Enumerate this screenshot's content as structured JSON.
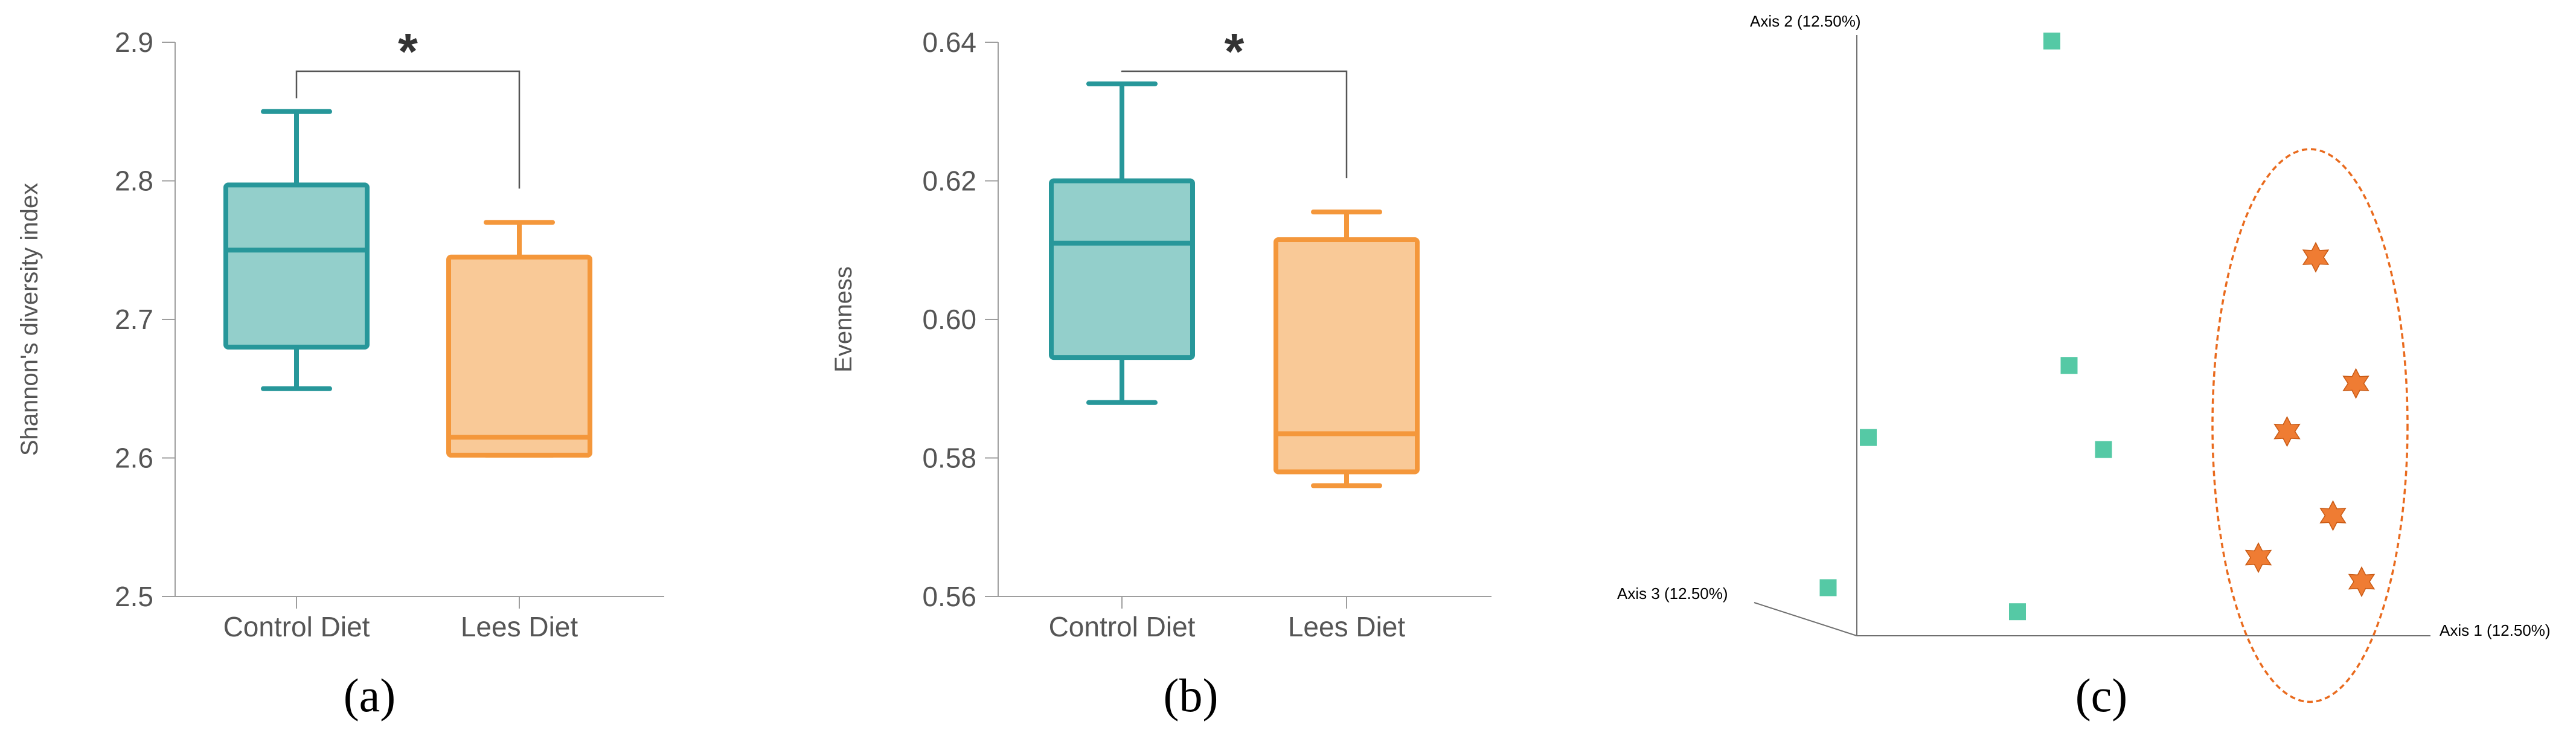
{
  "colors": {
    "control_stroke": "#27979a",
    "control_fill": "#93cfcb",
    "lees_stroke": "#f4973b",
    "lees_fill": "#f9c997",
    "square_points": "#55c9a5",
    "star_points": "#ef7c33",
    "ellipse": "#e96a1d"
  },
  "panels": [
    "(a)",
    "(b)",
    "(c)"
  ],
  "chart_data": [
    {
      "type": "box",
      "panel": "(a)",
      "title": "",
      "ylabel": "Shannon's diversity index",
      "xlabel": "",
      "ylim": [
        2.5,
        2.9
      ],
      "yticks": [
        "2.5",
        "2.6",
        "2.7",
        "2.8",
        "2.9"
      ],
      "yticks_values": [
        2.5,
        2.6,
        2.7,
        2.8,
        2.9
      ],
      "categories": [
        "Control Diet",
        "Lees Diet"
      ],
      "boxes": [
        {
          "category": "Control Diet",
          "min": 2.65,
          "q1": 2.68,
          "median": 2.75,
          "q3": 2.797,
          "max": 2.85,
          "color": "control"
        },
        {
          "category": "Lees Diet",
          "min": 2.602,
          "q1": 2.602,
          "median": 2.615,
          "q3": 2.745,
          "max": 2.77,
          "color": "lees"
        }
      ],
      "significance": "*"
    },
    {
      "type": "box",
      "panel": "(b)",
      "title": "",
      "ylabel": "Evenness",
      "xlabel": "",
      "ylim": [
        0.56,
        0.64
      ],
      "yticks": [
        "0.56",
        "0.58",
        "0.60",
        "0.62",
        "0.64"
      ],
      "yticks_values": [
        0.56,
        0.58,
        0.6,
        0.62,
        0.64
      ],
      "categories": [
        "Control Diet",
        "Lees Diet"
      ],
      "boxes": [
        {
          "category": "Control Diet",
          "min": 0.588,
          "q1": 0.5945,
          "median": 0.611,
          "q3": 0.62,
          "max": 0.634,
          "color": "control"
        },
        {
          "category": "Lees Diet",
          "min": 0.576,
          "q1": 0.578,
          "median": 0.5835,
          "q3": 0.6115,
          "max": 0.6155,
          "color": "lees"
        }
      ],
      "significance": "*"
    },
    {
      "type": "scatter",
      "panel": "(c)",
      "title": "",
      "axes": [
        "Axis 1 (12.50%)",
        "Axis 2 (12.50%)",
        "Axis 3 (12.50%)"
      ],
      "series": [
        {
          "marker": "square",
          "color": "square_points",
          "points": [
            [
              0.34,
              0.99
            ],
            [
              0.37,
              0.45
            ],
            [
              0.43,
              0.31
            ],
            [
              0.02,
              0.33
            ],
            [
              0.28,
              0.04
            ],
            [
              -0.05,
              0.08
            ]
          ]
        },
        {
          "marker": "star",
          "color": "star_points",
          "points": [
            [
              0.8,
              0.63
            ],
            [
              0.87,
              0.42
            ],
            [
              0.75,
              0.34
            ],
            [
              0.83,
              0.2
            ],
            [
              0.7,
              0.13
            ],
            [
              0.88,
              0.09
            ]
          ]
        }
      ],
      "ellipse": {
        "cx": 0.79,
        "cy": 0.35,
        "rx": 0.17,
        "ry": 0.46
      }
    }
  ]
}
